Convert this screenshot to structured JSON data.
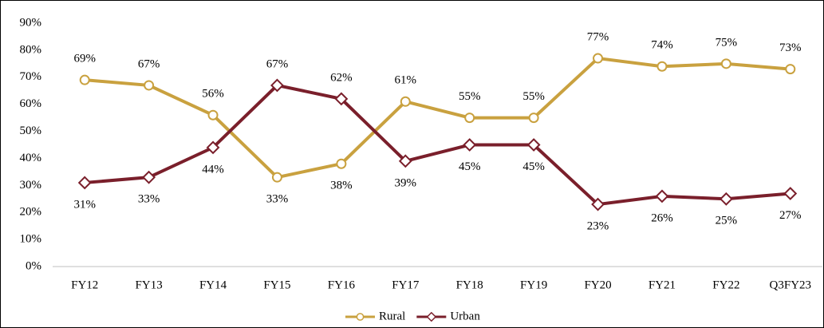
{
  "chart_data": {
    "type": "line",
    "categories": [
      "FY12",
      "FY13",
      "FY14",
      "FY15",
      "FY16",
      "FY17",
      "FY18",
      "FY19",
      "FY20",
      "FY21",
      "FY22",
      "Q3FY23"
    ],
    "series": [
      {
        "name": "Rural",
        "color": "#c9a13f",
        "marker": "circle",
        "values": [
          69,
          67,
          56,
          33,
          38,
          61,
          55,
          55,
          77,
          74,
          75,
          73
        ],
        "value_labels": [
          "69%",
          "67%",
          "56%",
          "33%",
          "38%",
          "61%",
          "55%",
          "55%",
          "77%",
          "74%",
          "75%",
          "73%"
        ]
      },
      {
        "name": "Urban",
        "color": "#7a1f2b",
        "marker": "diamond",
        "values": [
          31,
          33,
          44,
          67,
          62,
          39,
          45,
          45,
          23,
          26,
          25,
          27
        ],
        "value_labels": [
          "31%",
          "33%",
          "44%",
          "67%",
          "62%",
          "39%",
          "45%",
          "45%",
          "23%",
          "26%",
          "25%",
          "27%"
        ]
      }
    ],
    "ylim": [
      0,
      90
    ],
    "yticks": [
      {
        "value": 0,
        "label": "0%"
      },
      {
        "value": 10,
        "label": "10%"
      },
      {
        "value": 20,
        "label": "20%"
      },
      {
        "value": 30,
        "label": "30%"
      },
      {
        "value": 40,
        "label": "40%"
      },
      {
        "value": 50,
        "label": "50%"
      },
      {
        "value": 60,
        "label": "60%"
      },
      {
        "value": 70,
        "label": "70%"
      },
      {
        "value": 80,
        "label": "80%"
      },
      {
        "value": 90,
        "label": "90%"
      }
    ],
    "grid": false,
    "legend": "bottom"
  }
}
